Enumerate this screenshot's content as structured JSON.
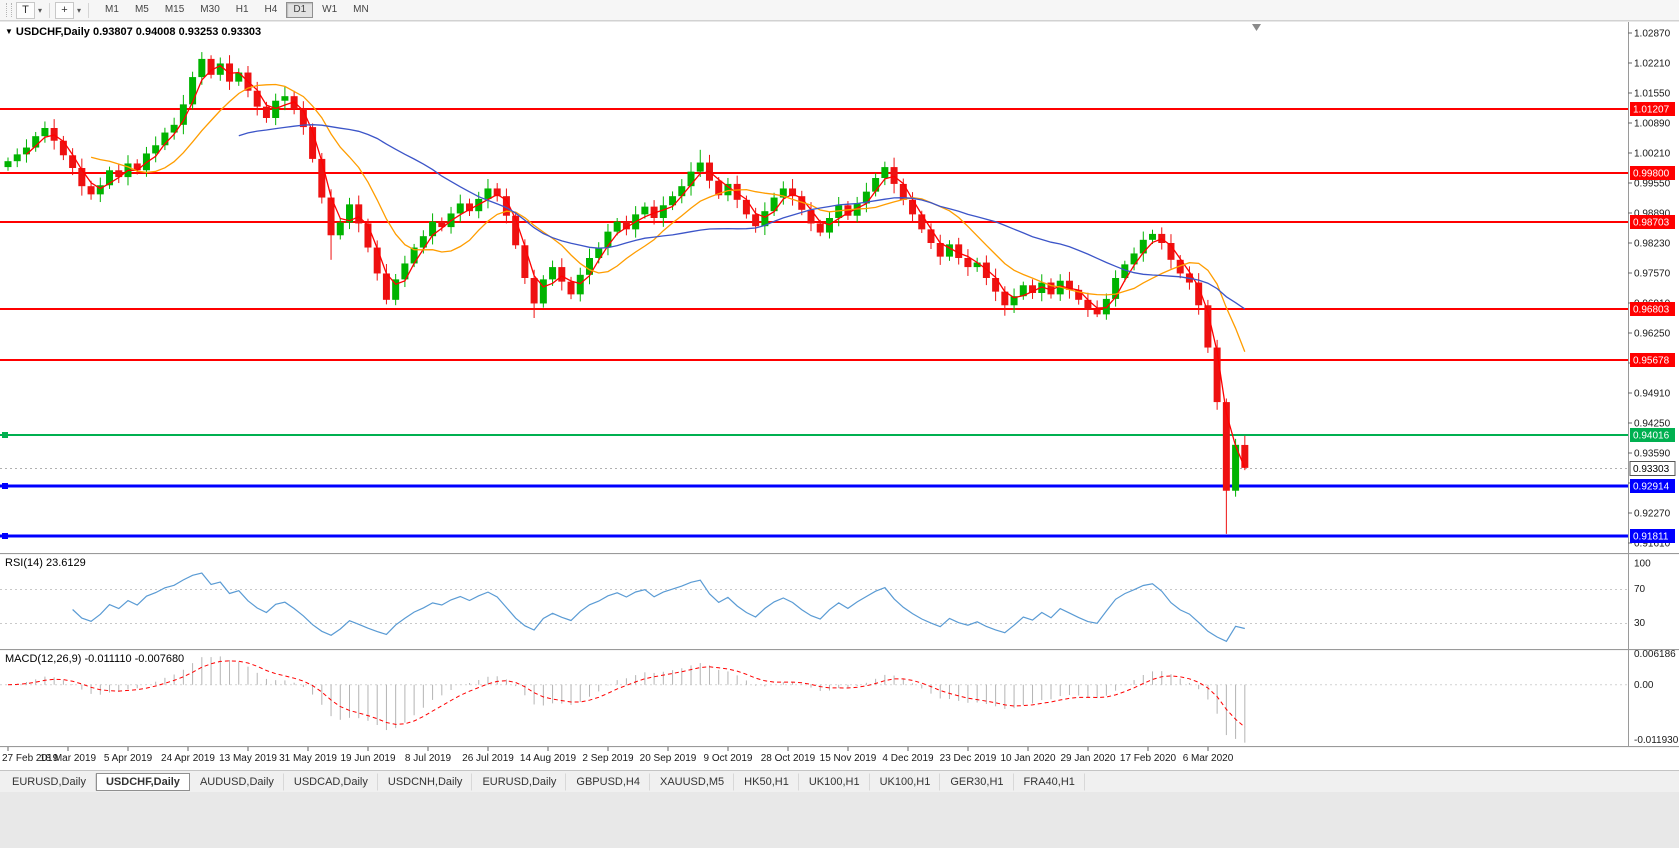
{
  "header": {
    "collapse_arrow": "▼",
    "symbol": "USDCHF,Daily",
    "ohlc_text": "0.93807 0.94008 0.93253 0.93303"
  },
  "toolbar": {
    "text_tool_label": "T",
    "caret_glyph": "▾",
    "crosshair_glyph": "+",
    "timeframes": [
      "M1",
      "M5",
      "M15",
      "M30",
      "H1",
      "H4",
      "D1",
      "W1",
      "MN"
    ],
    "active_timeframe": "D1"
  },
  "tabs": {
    "active_index": 1,
    "items": [
      "EURUSD,Daily",
      "USDCHF,Daily",
      "AUDUSD,Daily",
      "USDCAD,Daily",
      "USDCNH,Daily",
      "EURUSD,Daily",
      "GBPUSD,H4",
      "XAUUSD,M5",
      "HK50,H1",
      "UK100,H1",
      "UK100,H1",
      "GER30,H1",
      "FRA40,H1"
    ]
  },
  "chart_data": {
    "type": "candlestick",
    "symbol": "USDCHF",
    "timeframe": "Daily",
    "candle_up_color": "#00b300",
    "candle_down_color": "#ee1111",
    "first_open": 0.9992,
    "closes": [
      1.0005,
      1.002,
      1.0035,
      1.006,
      1.0078,
      1.005,
      1.0018,
      0.999,
      0.995,
      0.9932,
      0.9952,
      0.9985,
      0.997,
      1.0,
      0.9985,
      1.0022,
      1.004,
      1.0068,
      1.0085,
      1.013,
      1.019,
      1.023,
      1.0195,
      1.022,
      1.018,
      1.02,
      1.016,
      1.0125,
      1.01,
      1.0138,
      1.0148,
      1.012,
      1.008,
      1.001,
      0.9925,
      0.9842,
      0.987,
      0.991,
      0.9868,
      0.9815,
      0.9758,
      0.97,
      0.9745,
      0.978,
      0.9815,
      0.984,
      0.9872,
      0.986,
      0.989,
      0.9912,
      0.9895,
      0.9922,
      0.9945,
      0.9928,
      0.9885,
      0.982,
      0.9748,
      0.9692,
      0.9745,
      0.9772,
      0.974,
      0.9712,
      0.9755,
      0.9792,
      0.9815,
      0.985,
      0.9872,
      0.9855,
      0.9888,
      0.9905,
      0.988,
      0.9908,
      0.9928,
      0.995,
      0.9982,
      1.0002,
      0.9962,
      0.993,
      0.9955,
      0.992,
      0.9888,
      0.9862,
      0.9895,
      0.9925,
      0.9945,
      0.9928,
      0.9898,
      0.9868,
      0.9848,
      0.988,
      0.9908,
      0.9885,
      0.9912,
      0.9938,
      0.9968,
      0.9992,
      0.9955,
      0.992,
      0.9888,
      0.9855,
      0.9825,
      0.9795,
      0.9822,
      0.9792,
      0.9772,
      0.9782,
      0.9748,
      0.9718,
      0.9688,
      0.9708,
      0.9732,
      0.9715,
      0.9738,
      0.9712,
      0.9742,
      0.9722,
      0.97,
      0.9678,
      0.9668,
      0.9702,
      0.9748,
      0.9778,
      0.9802,
      0.9832,
      0.9845,
      0.9825,
      0.9788,
      0.9758,
      0.9738,
      0.9688,
      0.9595,
      0.9475,
      0.928,
      0.9381,
      0.93303
    ],
    "candle_overrides": {
      "21": {
        "high": 1.0245
      },
      "35": {
        "low": 0.9788
      },
      "41": {
        "low": 0.969
      },
      "57": {
        "low": 0.966
      },
      "75": {
        "high": 1.003
      },
      "95": {
        "high": 1.0004
      },
      "108": {
        "low": 0.9665
      },
      "118": {
        "low": 0.9662
      },
      "132": {
        "low": 0.9185
      },
      "134": {
        "open": 0.93807,
        "high": 0.94008,
        "low": 0.93253
      }
    },
    "moving_averages": [
      {
        "period": 3,
        "color": "#ff0000"
      },
      {
        "period": 10,
        "color": "#ff9d00"
      },
      {
        "period": 26,
        "color": "#3c55c8"
      }
    ],
    "horizontal_lines": [
      {
        "price": 1.01207,
        "label": "1.01207",
        "color": "#ff0000",
        "width": 2,
        "handle": false
      },
      {
        "price": 0.998,
        "label": "0.99800",
        "color": "#ff0000",
        "width": 2,
        "handle": false
      },
      {
        "price": 0.98703,
        "label": "0.98703",
        "color": "#ff0000",
        "width": 2,
        "handle": false
      },
      {
        "price": 0.96803,
        "label": "0.96803",
        "color": "#ff0000",
        "width": 2,
        "handle": false
      },
      {
        "price": 0.95678,
        "label": "0.95678",
        "color": "#ff0000",
        "width": 2,
        "handle": false
      },
      {
        "price": 0.94016,
        "label": "0.94016",
        "color": "#00b050",
        "width": 2,
        "handle": true
      },
      {
        "price": 0.92914,
        "label": "0.92914",
        "color": "#0000ff",
        "width": 3,
        "handle": true
      },
      {
        "price": 0.91811,
        "label": "0.91811",
        "color": "#0000ff",
        "width": 3,
        "handle": true
      }
    ],
    "current_price": {
      "value": 0.93303,
      "label": "0.93303"
    },
    "price_axis_ticks": [
      "1.02870",
      "1.02210",
      "1.01550",
      "1.00890",
      "1.00210",
      "0.99550",
      "0.98890",
      "0.98230",
      "0.97570",
      "0.96910",
      "0.96250",
      "0.95590",
      "0.94910",
      "0.94250",
      "0.93590",
      "0.92930",
      "0.92270",
      "0.91610"
    ],
    "time_axis_labels": [
      "27 Feb 2019",
      "18 Mar 2019",
      "5 Apr 2019",
      "24 Apr 2019",
      "13 May 2019",
      "31 May 2019",
      "19 Jun 2019",
      "8 Jul 2019",
      "26 Jul 2019",
      "14 Aug 2019",
      "2 Sep 2019",
      "20 Sep 2019",
      "9 Oct 2019",
      "28 Oct 2019",
      "15 Nov 2019",
      "4 Dec 2019",
      "23 Dec 2019",
      "10 Jan 2020",
      "29 Jan 2020",
      "17 Feb 2020",
      "6 Mar 2020"
    ],
    "rsi": {
      "name": "RSI(14)",
      "value": "23.6129",
      "render_period": 7,
      "color": "#5a9bd4",
      "levels_dotted": [
        70,
        30
      ],
      "axis_labels": [
        "100",
        "70",
        "30"
      ]
    },
    "macd": {
      "name": "MACD(12,26,9)",
      "values": "-0.011110 -0.007680",
      "render_fast": 6,
      "render_slow": 13,
      "render_signal": 5,
      "histogram_color": "#b4b4b4",
      "signal_color": "#ff0000",
      "axis_max": "0.006186",
      "axis_zero": "0.00",
      "axis_min": "-0.011930"
    }
  }
}
